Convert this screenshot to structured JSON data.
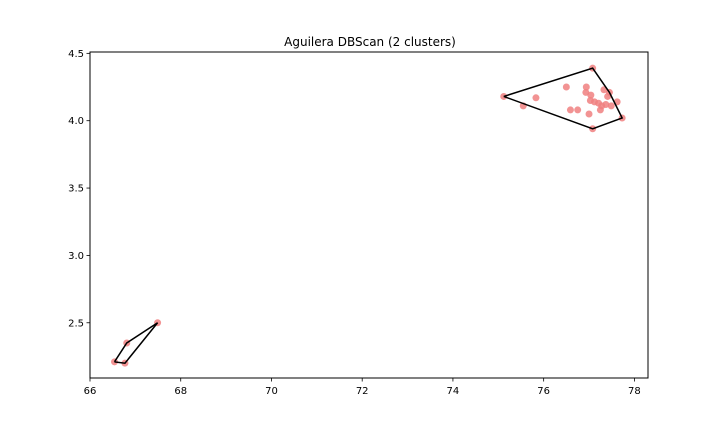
{
  "chart_data": {
    "type": "scatter",
    "title": "Aguilera DBScan (2 clusters)",
    "xlabel": "",
    "ylabel": "",
    "xlim": [
      66.0,
      78.3
    ],
    "ylim": [
      2.09,
      4.51
    ],
    "x_ticks": [
      {
        "value": 66,
        "label": "66"
      },
      {
        "value": 68,
        "label": "68"
      },
      {
        "value": 70,
        "label": "70"
      },
      {
        "value": 72,
        "label": "72"
      },
      {
        "value": 74,
        "label": "74"
      },
      {
        "value": 76,
        "label": "76"
      },
      {
        "value": 78,
        "label": "78"
      }
    ],
    "y_ticks": [
      {
        "value": 2.5,
        "label": "2.5"
      },
      {
        "value": 3.0,
        "label": "3.0"
      },
      {
        "value": 3.5,
        "label": "3.5"
      },
      {
        "value": 4.0,
        "label": "4.0"
      },
      {
        "value": 4.5,
        "label": "4.5"
      }
    ],
    "grid": false,
    "point_color": "#f08080",
    "hull_color": "#000000",
    "points": [
      {
        "x": 66.54,
        "y": 2.21
      },
      {
        "x": 66.77,
        "y": 2.2
      },
      {
        "x": 66.81,
        "y": 2.35
      },
      {
        "x": 67.49,
        "y": 2.5
      },
      {
        "x": 75.12,
        "y": 4.18
      },
      {
        "x": 75.55,
        "y": 4.11
      },
      {
        "x": 75.83,
        "y": 4.17
      },
      {
        "x": 76.5,
        "y": 4.25
      },
      {
        "x": 76.59,
        "y": 4.08
      },
      {
        "x": 76.75,
        "y": 4.08
      },
      {
        "x": 76.93,
        "y": 4.21
      },
      {
        "x": 76.94,
        "y": 4.25
      },
      {
        "x": 77.0,
        "y": 4.05
      },
      {
        "x": 77.03,
        "y": 4.15
      },
      {
        "x": 77.04,
        "y": 4.19
      },
      {
        "x": 77.08,
        "y": 4.39
      },
      {
        "x": 77.08,
        "y": 3.94
      },
      {
        "x": 77.12,
        "y": 4.14
      },
      {
        "x": 77.21,
        "y": 4.13
      },
      {
        "x": 77.25,
        "y": 4.08
      },
      {
        "x": 77.28,
        "y": 4.11
      },
      {
        "x": 77.33,
        "y": 4.23
      },
      {
        "x": 77.37,
        "y": 4.12
      },
      {
        "x": 77.41,
        "y": 4.18
      },
      {
        "x": 77.45,
        "y": 4.21
      },
      {
        "x": 77.49,
        "y": 4.11
      },
      {
        "x": 77.62,
        "y": 4.14
      },
      {
        "x": 77.73,
        "y": 4.02
      }
    ],
    "hulls": [
      [
        {
          "x": 66.54,
          "y": 2.21
        },
        {
          "x": 66.77,
          "y": 2.2
        },
        {
          "x": 67.49,
          "y": 2.5
        },
        {
          "x": 66.81,
          "y": 2.35
        },
        {
          "x": 66.54,
          "y": 2.21
        }
      ],
      [
        {
          "x": 75.12,
          "y": 4.18
        },
        {
          "x": 77.08,
          "y": 4.39
        },
        {
          "x": 77.45,
          "y": 4.21
        },
        {
          "x": 77.73,
          "y": 4.02
        },
        {
          "x": 77.08,
          "y": 3.94
        },
        {
          "x": 75.12,
          "y": 4.18
        }
      ]
    ]
  }
}
